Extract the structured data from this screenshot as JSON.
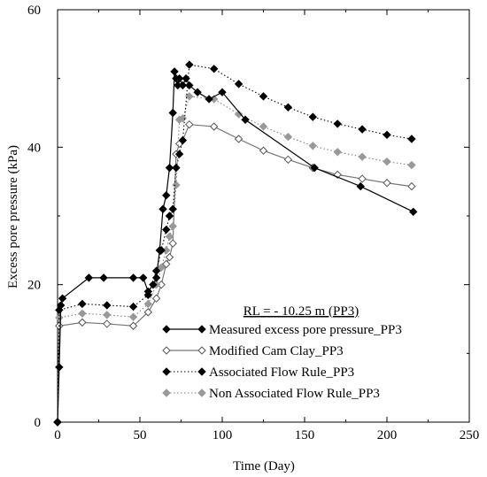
{
  "chart_data": {
    "type": "line",
    "title": "",
    "xlabel": "Time (Day)",
    "ylabel": "Excess pore pressure (kPa)",
    "xlim": [
      0,
      250
    ],
    "ylim": [
      0,
      60
    ],
    "xticks": [
      0,
      50,
      100,
      150,
      200,
      250
    ],
    "yticks": [
      0,
      20,
      40,
      60
    ],
    "grid": false,
    "legend_position": "bottom-right",
    "legend_title": "RL = - 10.25 m (PP3)",
    "series": [
      {
        "name": "Measured excess pore pressure_PP3",
        "style": "solid",
        "line_color": "#000000",
        "marker_fill": "#000000",
        "marker_stroke": "#000000",
        "x": [
          0,
          1,
          2,
          3,
          19,
          28,
          46,
          52,
          55,
          58,
          60,
          62,
          64,
          66,
          68,
          70,
          71,
          72,
          73,
          74,
          76,
          78,
          80,
          85,
          92,
          100,
          114,
          156,
          184,
          216
        ],
        "y": [
          0,
          8,
          17,
          18,
          21,
          21,
          21,
          21,
          19,
          20,
          21,
          25,
          31,
          33,
          37,
          45,
          51,
          50,
          49,
          50,
          49,
          50,
          49,
          48,
          47,
          48,
          44,
          37,
          34.3,
          30.6
        ]
      },
      {
        "name": "Modified Cam Clay_PP3",
        "style": "solid",
        "line_color": "#777777",
        "marker_fill": "#ffffff",
        "marker_stroke": "#555555",
        "x": [
          0,
          1,
          15,
          30,
          46,
          55,
          60,
          63,
          66,
          68,
          70,
          72,
          74,
          76,
          80,
          95,
          110,
          125,
          140,
          155,
          170,
          185,
          200,
          215
        ],
        "y": [
          0,
          14,
          14.5,
          14.3,
          14,
          16,
          18,
          20,
          23,
          24,
          26,
          39,
          40.5,
          41,
          43.3,
          43,
          41.2,
          39.5,
          38.2,
          37,
          36,
          35.4,
          34.8,
          34.3
        ]
      },
      {
        "name": "Associated Flow Rule_PP3",
        "style": "dotted",
        "line_color": "#000000",
        "marker_fill": "#000000",
        "marker_stroke": "#000000",
        "x": [
          0,
          1,
          15,
          30,
          46,
          55,
          60,
          63,
          66,
          68,
          70,
          72,
          74,
          76,
          80,
          95,
          110,
          125,
          140,
          155,
          170,
          185,
          200,
          215
        ],
        "y": [
          0,
          16.3,
          17.2,
          17,
          16.8,
          18.5,
          22,
          25,
          28,
          30,
          31,
          37,
          39,
          41,
          52,
          51.4,
          49.2,
          47.4,
          45.8,
          44.4,
          43.4,
          42.6,
          41.8,
          41.2
        ]
      },
      {
        "name": "Non Associated Flow Rule_PP3",
        "style": "dotted",
        "line_color": "#808080",
        "marker_fill": "#999999",
        "marker_stroke": "#999999",
        "x": [
          0,
          1,
          15,
          30,
          46,
          55,
          60,
          63,
          66,
          68,
          70,
          72,
          74,
          76,
          80,
          95,
          110,
          125,
          140,
          155,
          170,
          185,
          200,
          215
        ],
        "y": [
          0,
          15.2,
          15.8,
          15.6,
          15.3,
          17.2,
          20,
          22.5,
          25,
          27,
          28.5,
          34.5,
          44,
          44.2,
          47.4,
          47,
          44.8,
          43,
          41.5,
          40.2,
          39.3,
          38.6,
          37.9,
          37.4
        ]
      }
    ]
  }
}
